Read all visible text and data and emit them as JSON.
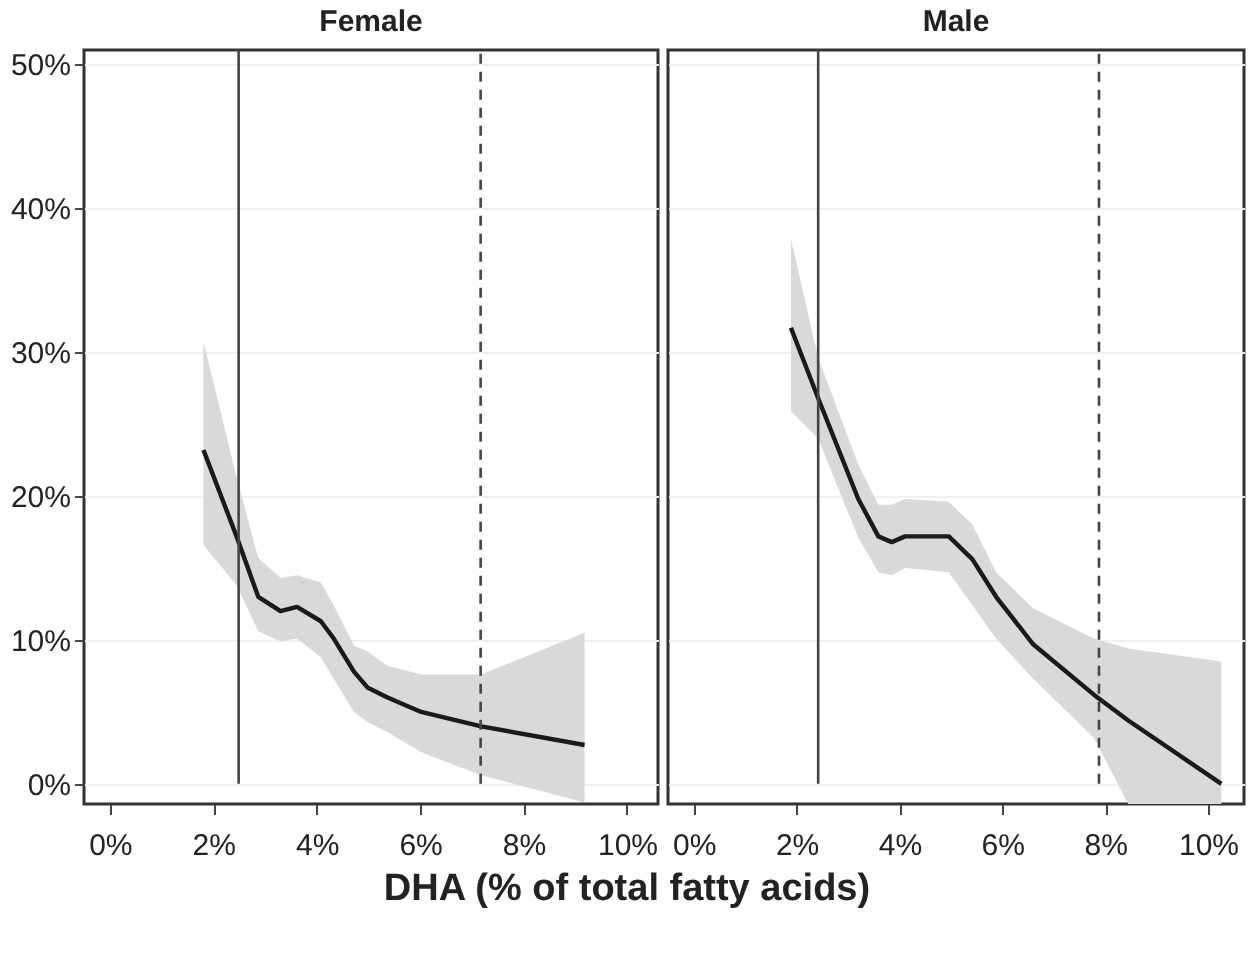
{
  "chart_data": [
    {
      "type": "line",
      "title": "Female",
      "xlabel": "DHA (% of total fatty acids)",
      "xlim": [
        -0.5,
        10.6
      ],
      "ylim": [
        -1.4,
        51
      ],
      "xticks": [
        {
          "value": 0,
          "label": "0%"
        },
        {
          "value": 2,
          "label": "2%"
        },
        {
          "value": 4,
          "label": "4%"
        },
        {
          "value": 6,
          "label": "6%"
        },
        {
          "value": 8,
          "label": "8%"
        },
        {
          "value": 10,
          "label": "10%"
        }
      ],
      "yticks": [
        {
          "value": 0,
          "label": "0%"
        },
        {
          "value": 10,
          "label": "10%"
        },
        {
          "value": 20,
          "label": "20%"
        },
        {
          "value": 30,
          "label": "30%"
        },
        {
          "value": 40,
          "label": "40%"
        },
        {
          "value": 50,
          "label": "50%"
        }
      ],
      "grid": "y",
      "line_style": "solid",
      "series": [
        {
          "color": "#1a1a1a",
          "x": [
            1.81,
            2.45,
            2.87,
            3.3,
            3.62,
            4.08,
            4.33,
            4.72,
            4.98,
            5.37,
            6.02,
            7.18,
            9.18
          ],
          "values": [
            23.2,
            17.2,
            13,
            12,
            12.3,
            11.3,
            10.1,
            7.8,
            6.7,
            6,
            5,
            4,
            2.7
          ],
          "lower": [
            16.6,
            13.8,
            10.6,
            9.9,
            10.1,
            8.8,
            7.3,
            5,
            4.3,
            3.6,
            2.2,
            0.6,
            -1.3
          ],
          "upper": [
            30.7,
            21.3,
            15.7,
            14.3,
            14.5,
            14,
            12.4,
            9.6,
            9.2,
            8.2,
            7.6,
            7.6,
            10.5
          ]
        }
      ],
      "ref_lines": [
        {
          "axis": "x",
          "value": 2.49,
          "color": "#444444",
          "line_style": "solid"
        },
        {
          "axis": "x",
          "value": 7.17,
          "color": "#444444",
          "line_style": "dashed"
        }
      ]
    },
    {
      "type": "line",
      "title": "Male",
      "xlim": [
        -0.5,
        10.7
      ],
      "ylim": [
        -1.4,
        51
      ],
      "tick_labels": "x",
      "xticks": [
        {
          "value": 0,
          "label": "0%"
        },
        {
          "value": 2,
          "label": "2%"
        },
        {
          "value": 4,
          "label": "4%"
        },
        {
          "value": 6,
          "label": "6%"
        },
        {
          "value": 8,
          "label": "8%"
        },
        {
          "value": 10,
          "label": "10%"
        }
      ],
      "yticks": [
        {
          "value": 0,
          "label": null
        },
        {
          "value": 10,
          "label": null
        },
        {
          "value": 20,
          "label": null
        },
        {
          "value": 30,
          "label": null
        },
        {
          "value": 40,
          "label": null
        },
        {
          "value": 50,
          "label": null
        }
      ],
      "grid": "y",
      "line_style": "solid",
      "series": [
        {
          "color": "#1a1a1a",
          "x": [
            1.89,
            2.42,
            3.2,
            3.59,
            3.85,
            4.11,
            4.96,
            5.42,
            5.88,
            6.6,
            7.78,
            8.45,
            10.26
          ],
          "values": [
            31.7,
            26.8,
            19.8,
            17.2,
            16.8,
            17.2,
            17.2,
            15.6,
            13,
            9.7,
            6.2,
            4.4,
            0
          ],
          "lower": [
            25.9,
            24,
            17.1,
            14.7,
            14.5,
            15,
            14.7,
            12.4,
            10.1,
            7.3,
            3.2,
            -1.4,
            -1.4
          ],
          "upper": [
            37.9,
            29.6,
            22.2,
            19.4,
            19.4,
            19.8,
            19.6,
            18,
            14.7,
            12.2,
            10.1,
            9.4,
            8.5
          ]
        }
      ],
      "ref_lines": [
        {
          "axis": "x",
          "value": 2.42,
          "color": "#444444",
          "line_style": "solid"
        },
        {
          "axis": "x",
          "value": 7.88,
          "color": "#444444",
          "line_style": "dashed"
        }
      ]
    }
  ]
}
